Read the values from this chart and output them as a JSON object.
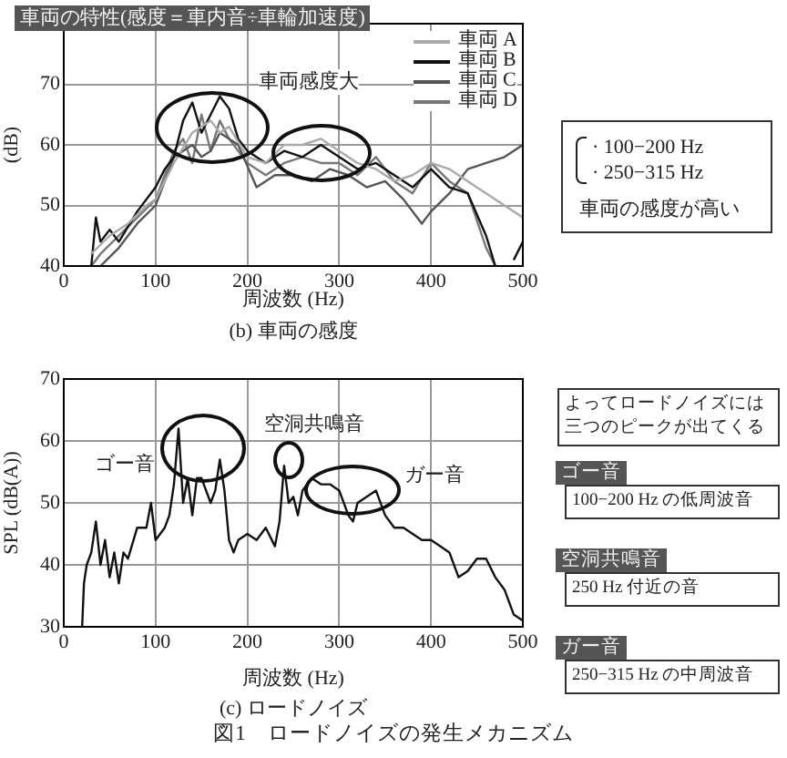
{
  "chart_data": [
    {
      "type": "line",
      "title": "車両の特性(感度＝車内音÷車輪加速度)",
      "subtitle": "(b) 車両の感度",
      "xlabel": "周波数 (Hz)",
      "ylabel": "(dB)",
      "xlim": [
        0,
        500
      ],
      "xticks": [
        0,
        100,
        200,
        300,
        400,
        500
      ],
      "ylim": [
        40,
        80
      ],
      "yticks": [
        40,
        50,
        60,
        70,
        {
          "value": 80,
          "label": null
        }
      ],
      "grid": true,
      "legend": "top right",
      "line_style": "solid",
      "series": [
        {
          "name": "車両 A",
          "color": "#aaaaaa",
          "x": [
            30,
            50,
            70,
            90,
            100,
            120,
            140,
            160,
            170,
            180,
            200,
            220,
            240,
            260,
            280,
            300,
            320,
            340,
            360,
            380,
            400,
            420,
            440,
            460,
            480,
            500
          ],
          "values": [
            42,
            45,
            47,
            50,
            51,
            57,
            62,
            64,
            62,
            63,
            58,
            57,
            60,
            60,
            61,
            59,
            57,
            56,
            54,
            55,
            57,
            56,
            54,
            52,
            50,
            48
          ]
        },
        {
          "name": "車両 B",
          "color": "#111111",
          "x": [
            30,
            35,
            40,
            50,
            60,
            80,
            100,
            110,
            120,
            130,
            140,
            150,
            160,
            170,
            180,
            190,
            200,
            220,
            240,
            260,
            280,
            300,
            320,
            340,
            360,
            380,
            400,
            420,
            440,
            460,
            470,
            480,
            490,
            500
          ],
          "values": [
            40,
            48,
            44,
            46,
            44,
            49,
            53,
            56,
            58,
            64,
            67,
            62,
            65,
            68,
            66,
            61,
            59,
            57,
            59,
            58,
            60,
            58,
            56,
            57,
            55,
            53,
            56,
            53,
            52,
            45,
            40,
            null,
            41,
            44
          ]
        },
        {
          "name": "車両 C",
          "color": "#555555",
          "x": [
            40,
            60,
            80,
            100,
            120,
            140,
            150,
            160,
            170,
            190,
            210,
            230,
            250,
            270,
            290,
            310,
            330,
            350,
            370,
            390,
            400,
            420,
            440,
            460,
            480,
            500
          ],
          "values": [
            40,
            43,
            47,
            50,
            58,
            60,
            58,
            59,
            62,
            60,
            53,
            55,
            55,
            54,
            56,
            55,
            53,
            54,
            51,
            47,
            49,
            52,
            56,
            57,
            58,
            60
          ]
        },
        {
          "name": "車両 D",
          "color": "#777777",
          "x": [
            30,
            40,
            60,
            80,
            100,
            120,
            130,
            140,
            150,
            160,
            170,
            180,
            200,
            220,
            240,
            260,
            280,
            300,
            320,
            340,
            360,
            380,
            400,
            420,
            440,
            460,
            470
          ],
          "values": [
            40,
            42,
            45,
            48,
            51,
            59,
            61,
            57,
            65,
            59,
            64,
            61,
            57,
            55,
            57,
            58,
            57,
            57,
            55,
            58,
            54,
            52,
            57,
            54,
            52,
            43,
            40
          ]
        }
      ],
      "annotations": [
        "車両感度大",
        "· 100−200 Hz",
        "· 250−315 Hz",
        "車両の感度が高い"
      ]
    },
    {
      "type": "line",
      "subtitle": "(c) ロードノイズ",
      "xlabel": "周波数 (Hz)",
      "ylabel": "SPL (dB(A))",
      "xlim": [
        0,
        500
      ],
      "xticks": [
        0,
        100,
        200,
        300,
        400,
        500
      ],
      "ylim": [
        30,
        70
      ],
      "yticks": [
        30,
        40,
        50,
        60,
        70
      ],
      "grid": true,
      "line_style": "solid",
      "color": "#111111",
      "x": [
        20,
        22,
        25,
        30,
        35,
        40,
        45,
        50,
        55,
        60,
        65,
        70,
        80,
        90,
        95,
        100,
        110,
        115,
        120,
        125,
        130,
        135,
        140,
        145,
        150,
        160,
        165,
        170,
        175,
        180,
        185,
        190,
        200,
        210,
        220,
        230,
        235,
        240,
        245,
        250,
        255,
        260,
        270,
        280,
        290,
        300,
        310,
        315,
        320,
        330,
        340,
        350,
        360,
        370,
        380,
        390,
        400,
        410,
        420,
        430,
        440,
        450,
        460,
        470,
        480,
        490,
        500
      ],
      "values": [
        30,
        37,
        40,
        42,
        47,
        40,
        44,
        38,
        42,
        37,
        42,
        41,
        46,
        46,
        50,
        44,
        46,
        48,
        53,
        62,
        50,
        54,
        48,
        54,
        54,
        50,
        52,
        57,
        52,
        44,
        42,
        44,
        45,
        44,
        46,
        43,
        47,
        56,
        50,
        51,
        48,
        52,
        54,
        53,
        53,
        52,
        48,
        47,
        50,
        51,
        52,
        48,
        46,
        46,
        45,
        44,
        44,
        43,
        42,
        38,
        39,
        41,
        41,
        38,
        36,
        32,
        31
      ],
      "annotations": [
        "ゴー音",
        "空洞共鳴音",
        "ガー音",
        "よってロードノイズには三つのピークが出てくる",
        "ゴー音",
        "100−200 Hz の低周波音",
        "空洞共鳴音",
        "250 Hz 付近の音",
        "ガー音",
        "250−315 Hz の中周波音",
        "図1　ロードノイズの発生メカニズム"
      ]
    }
  ]
}
